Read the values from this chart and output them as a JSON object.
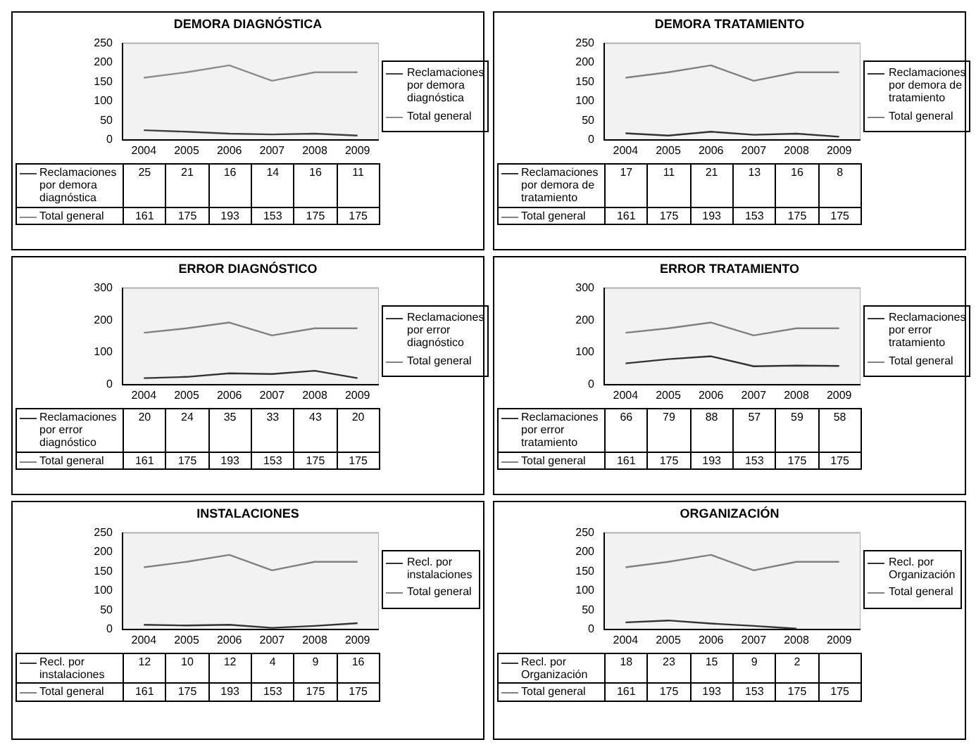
{
  "chart_data": [
    {
      "type": "line",
      "title": "DEMORA DIAGNÓSTICA",
      "categories": [
        "2004",
        "2005",
        "2006",
        "2007",
        "2008",
        "2009"
      ],
      "series": [
        {
          "name": "Reclamaciones por demora diagnóstica",
          "color": "#404040",
          "values": [
            25,
            21,
            16,
            14,
            16,
            11
          ]
        },
        {
          "name": "Total general",
          "color": "#8c8c8c",
          "values": [
            161,
            175,
            193,
            153,
            175,
            175
          ]
        }
      ],
      "ylim": [
        0,
        250
      ],
      "yticks": [
        0,
        50,
        100,
        150,
        200,
        250
      ],
      "grid": false,
      "legend": "right",
      "marker": "none",
      "data_labels": true
    },
    {
      "type": "line",
      "title": "DEMORA TRATAMIENTO",
      "categories": [
        "2004",
        "2005",
        "2006",
        "2007",
        "2008",
        "2009"
      ],
      "series": [
        {
          "name": "Reclamaciones por demora de tratamiento",
          "color": "#333333",
          "values": [
            17,
            11,
            21,
            13,
            16,
            8
          ]
        },
        {
          "name": "Total general",
          "color": "#808080",
          "values": [
            161,
            175,
            193,
            153,
            175,
            175
          ]
        }
      ],
      "ylim": [
        0,
        250
      ],
      "yticks": [
        0,
        50,
        100,
        150,
        200,
        250
      ],
      "grid": false,
      "legend": "right",
      "marker": "none",
      "data_labels": true
    },
    {
      "type": "line",
      "title": "ERROR DIAGNÓSTICO",
      "categories": [
        "2004",
        "2005",
        "2006",
        "2007",
        "2008",
        "2009"
      ],
      "series": [
        {
          "name": "Reclamaciones por error diagnóstico",
          "color": "#333333",
          "values": [
            20,
            24,
            35,
            33,
            43,
            20
          ]
        },
        {
          "name": "Total general",
          "color": "#808080",
          "values": [
            161,
            175,
            193,
            153,
            175,
            175
          ]
        }
      ],
      "ylim": [
        0,
        300
      ],
      "yticks": [
        0,
        100,
        200,
        300
      ],
      "grid": false,
      "legend": "right",
      "marker": "none",
      "data_labels": true
    },
    {
      "type": "line",
      "title": "ERROR TRATAMIENTO",
      "categories": [
        "2004",
        "2005",
        "2006",
        "2007",
        "2008",
        "2009"
      ],
      "series": [
        {
          "name": "Reclamaciones por error tratamiento",
          "color": "#333333",
          "values": [
            66,
            79,
            88,
            57,
            59,
            58
          ]
        },
        {
          "name": "Total general",
          "color": "#808080",
          "values": [
            161,
            175,
            193,
            153,
            175,
            175
          ]
        }
      ],
      "ylim": [
        0,
        300
      ],
      "yticks": [
        0,
        100,
        200,
        300
      ],
      "grid": false,
      "legend": "right",
      "marker": "none",
      "data_labels": true
    },
    {
      "type": "line",
      "title": "INSTALACIONES",
      "categories": [
        "2004",
        "2005",
        "2006",
        "2007",
        "2008",
        "2009"
      ],
      "series": [
        {
          "name": "Recl. por instalaciones",
          "color": "#333333",
          "values": [
            12,
            10,
            12,
            4,
            9,
            16
          ]
        },
        {
          "name": "Total general",
          "color": "#808080",
          "values": [
            161,
            175,
            193,
            153,
            175,
            175
          ]
        }
      ],
      "ylim": [
        0,
        250
      ],
      "yticks": [
        0,
        50,
        100,
        150,
        200,
        250
      ],
      "grid": false,
      "legend": "right",
      "marker": "none",
      "data_labels": true
    },
    {
      "type": "line",
      "title": "ORGANIZACIÓN",
      "categories": [
        "2004",
        "2005",
        "2006",
        "2007",
        "2008",
        "2009"
      ],
      "series": [
        {
          "name": "Recl. por Organización",
          "color": "#333333",
          "values": [
            18,
            23,
            15,
            9,
            2,
            null
          ]
        },
        {
          "name": "Total general",
          "color": "#808080",
          "values": [
            161,
            175,
            193,
            153,
            175,
            175
          ]
        }
      ],
      "ylim": [
        0,
        250
      ],
      "yticks": [
        0,
        50,
        100,
        150,
        200,
        250
      ],
      "grid": false,
      "legend": "right",
      "marker": "none",
      "data_labels": true
    }
  ]
}
